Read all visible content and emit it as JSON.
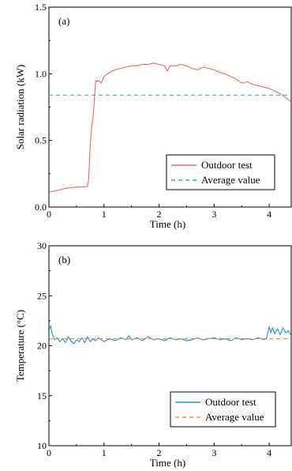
{
  "chart_data": [
    {
      "type": "line",
      "panel_label": "(a)",
      "xlabel": "Time (h)",
      "ylabel": "Solar radiation (kW)",
      "xlim": [
        0,
        4.4
      ],
      "ylim": [
        0.0,
        1.5
      ],
      "xticks": [
        0,
        1,
        2,
        3,
        4
      ],
      "yticks": [
        0.0,
        0.5,
        1.0,
        1.5
      ],
      "ytick_labels": [
        "0.0",
        "0.5",
        "1.0",
        "1.5"
      ],
      "legend_position": "bottom-right",
      "series": [
        {
          "name": "Outdoor test",
          "color": "#e8666a",
          "style": "solid",
          "x": [
            0,
            0.1,
            0.2,
            0.3,
            0.4,
            0.5,
            0.6,
            0.7,
            0.72,
            0.75,
            0.78,
            0.8,
            0.82,
            0.85,
            0.88,
            0.9,
            0.95,
            1.0,
            1.1,
            1.2,
            1.3,
            1.4,
            1.5,
            1.6,
            1.7,
            1.8,
            1.9,
            2.0,
            2.1,
            2.15,
            2.2,
            2.3,
            2.4,
            2.5,
            2.6,
            2.7,
            2.8,
            2.9,
            3.0,
            3.1,
            3.2,
            3.3,
            3.4,
            3.5,
            3.6,
            3.7,
            3.8,
            3.9,
            4.0,
            4.1,
            4.2,
            4.3,
            4.4
          ],
          "y": [
            0.11,
            0.12,
            0.13,
            0.14,
            0.145,
            0.15,
            0.15,
            0.155,
            0.2,
            0.45,
            0.62,
            0.66,
            0.78,
            0.95,
            0.94,
            0.95,
            0.93,
            0.98,
            1.01,
            1.03,
            1.04,
            1.05,
            1.06,
            1.06,
            1.07,
            1.07,
            1.08,
            1.07,
            1.06,
            1.02,
            1.06,
            1.06,
            1.07,
            1.06,
            1.04,
            1.03,
            1.05,
            1.04,
            1.03,
            1.01,
            1.0,
            0.98,
            0.96,
            0.93,
            0.94,
            0.92,
            0.91,
            0.9,
            0.89,
            0.87,
            0.85,
            0.82,
            0.79
          ]
        },
        {
          "name": "Average value",
          "color": "#2ab5b8",
          "style": "dashed",
          "x": [
            0,
            4.4
          ],
          "y": [
            0.84,
            0.84
          ]
        }
      ]
    },
    {
      "type": "line",
      "panel_label": "(b)",
      "xlabel": "Time (h)",
      "ylabel": "Temperature (°C)",
      "xlim": [
        0,
        4.4
      ],
      "ylim": [
        10,
        30
      ],
      "xticks": [
        0,
        1,
        2,
        3,
        4
      ],
      "yticks": [
        10,
        15,
        20,
        25,
        30
      ],
      "ytick_labels": [
        "10",
        "15",
        "20",
        "25",
        "30"
      ],
      "legend_position": "bottom-right",
      "series": [
        {
          "name": "Outdoor test",
          "color": "#1a94dd",
          "style": "solid",
          "x": [
            0,
            0.03,
            0.06,
            0.1,
            0.15,
            0.2,
            0.25,
            0.3,
            0.35,
            0.4,
            0.45,
            0.5,
            0.55,
            0.6,
            0.65,
            0.7,
            0.75,
            0.8,
            0.85,
            0.9,
            0.95,
            1.0,
            1.1,
            1.2,
            1.3,
            1.4,
            1.45,
            1.5,
            1.6,
            1.7,
            1.8,
            1.9,
            2.0,
            2.1,
            2.2,
            2.3,
            2.4,
            2.5,
            2.6,
            2.7,
            2.8,
            2.9,
            3.0,
            3.1,
            3.2,
            3.3,
            3.4,
            3.5,
            3.6,
            3.7,
            3.8,
            3.9,
            3.95,
            4.0,
            4.03,
            4.06,
            4.1,
            4.15,
            4.2,
            4.25,
            4.3,
            4.35,
            4.4
          ],
          "y": [
            21.5,
            22.0,
            21.2,
            20.6,
            20.8,
            20.4,
            20.7,
            20.3,
            20.9,
            20.5,
            20.2,
            20.6,
            20.4,
            20.8,
            20.3,
            20.9,
            20.4,
            20.7,
            20.5,
            20.8,
            20.6,
            20.4,
            20.7,
            20.5,
            20.8,
            20.6,
            21.0,
            20.6,
            20.8,
            20.5,
            20.9,
            20.6,
            20.7,
            20.5,
            20.8,
            20.6,
            20.7,
            20.5,
            20.6,
            20.8,
            20.6,
            20.7,
            20.8,
            20.6,
            20.7,
            20.5,
            20.8,
            20.6,
            20.7,
            20.6,
            20.8,
            20.6,
            20.7,
            21.9,
            21.3,
            21.8,
            21.2,
            21.7,
            21.1,
            21.8,
            21.3,
            21.5,
            21.0
          ]
        },
        {
          "name": "Average value",
          "color": "#f0901f",
          "style": "dashed",
          "x": [
            0,
            4.4
          ],
          "y": [
            20.7,
            20.7
          ]
        }
      ]
    }
  ]
}
